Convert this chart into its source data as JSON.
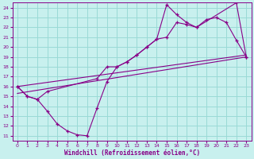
{
  "xlabel": "Windchill (Refroidissement éolien,°C)",
  "xlim": [
    -0.5,
    23.5
  ],
  "ylim": [
    10.5,
    24.5
  ],
  "xticks": [
    0,
    1,
    2,
    3,
    4,
    5,
    6,
    7,
    8,
    9,
    10,
    11,
    12,
    13,
    14,
    15,
    16,
    17,
    18,
    19,
    20,
    21,
    22,
    23
  ],
  "yticks": [
    11,
    12,
    13,
    14,
    15,
    16,
    17,
    18,
    19,
    20,
    21,
    22,
    23,
    24
  ],
  "bg_color": "#c8f0ee",
  "grid_color": "#9adad6",
  "line_color": "#880088",
  "curve1_x": [
    0,
    1,
    2,
    3,
    4,
    5,
    6,
    7,
    8,
    9,
    10,
    11,
    12,
    13,
    14,
    15,
    16,
    17,
    18,
    19,
    20,
    21,
    22,
    23
  ],
  "curve1_y": [
    16,
    15,
    14.7,
    13.5,
    12.2,
    11.5,
    11.1,
    11.0,
    13.8,
    16.5,
    18.0,
    18.5,
    19.2,
    20.0,
    20.8,
    24.3,
    23.3,
    22.5,
    22.0,
    22.8,
    23.0,
    22.5,
    20.7,
    19.0
  ],
  "curve2_x": [
    0,
    1,
    2,
    3,
    8,
    9,
    10,
    11,
    12,
    13,
    14,
    15,
    16,
    17,
    18,
    22,
    23
  ],
  "curve2_y": [
    16,
    15,
    14.7,
    15.5,
    16.8,
    18.0,
    18.0,
    18.5,
    19.2,
    20.0,
    20.8,
    21.0,
    22.5,
    22.3,
    22.0,
    24.5,
    19.0
  ],
  "trend1_x": [
    0,
    23
  ],
  "trend1_y": [
    15.3,
    19.0
  ],
  "trend2_x": [
    0,
    23
  ],
  "trend2_y": [
    16.0,
    19.2
  ]
}
